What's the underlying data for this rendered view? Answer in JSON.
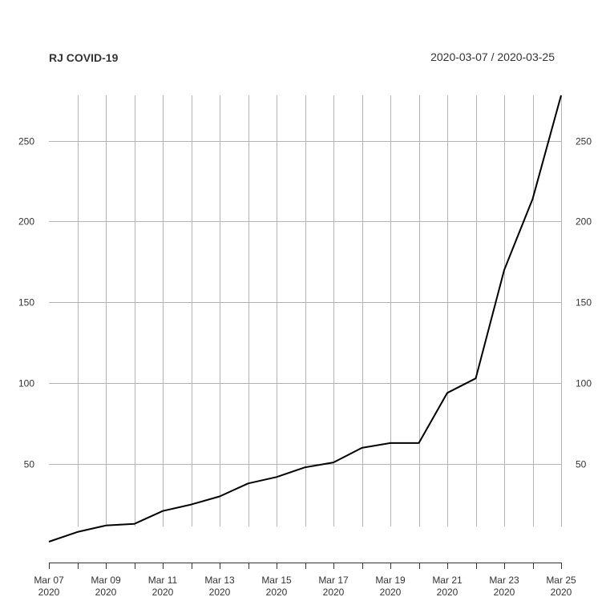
{
  "chart_data": {
    "type": "line",
    "title": "RJ COVID-19",
    "date_range": "2020-03-07 / 2020-03-25",
    "xlabel": "",
    "ylabel": "",
    "x": [
      "2020-03-07",
      "2020-03-08",
      "2020-03-09",
      "2020-03-10",
      "2020-03-11",
      "2020-03-12",
      "2020-03-13",
      "2020-03-14",
      "2020-03-15",
      "2020-03-16",
      "2020-03-17",
      "2020-03-18",
      "2020-03-19",
      "2020-03-20",
      "2020-03-21",
      "2020-03-22",
      "2020-03-23",
      "2020-03-24",
      "2020-03-25"
    ],
    "series": [
      {
        "values": [
          2,
          8,
          12,
          13,
          21,
          25,
          30,
          38,
          42,
          48,
          51,
          60,
          63,
          63,
          94,
          103,
          170,
          214,
          278
        ],
        "color": "#000000"
      }
    ],
    "xticks": [
      {
        "month": "Mar 07",
        "year": "2020"
      },
      {
        "month": "Mar 09",
        "year": "2020"
      },
      {
        "month": "Mar 11",
        "year": "2020"
      },
      {
        "month": "Mar 13",
        "year": "2020"
      },
      {
        "month": "Mar 15",
        "year": "2020"
      },
      {
        "month": "Mar 17",
        "year": "2020"
      },
      {
        "month": "Mar 19",
        "year": "2020"
      },
      {
        "month": "Mar 21",
        "year": "2020"
      },
      {
        "month": "Mar 23",
        "year": "2020"
      },
      {
        "month": "Mar 25",
        "year": "2020"
      }
    ],
    "yticks": [
      "50",
      "100",
      "150",
      "200",
      "250"
    ],
    "ytick_values": [
      50,
      100,
      150,
      200,
      250
    ],
    "ylim": [
      2,
      278
    ],
    "grid": true,
    "y_axis_labels": "both-sides"
  }
}
